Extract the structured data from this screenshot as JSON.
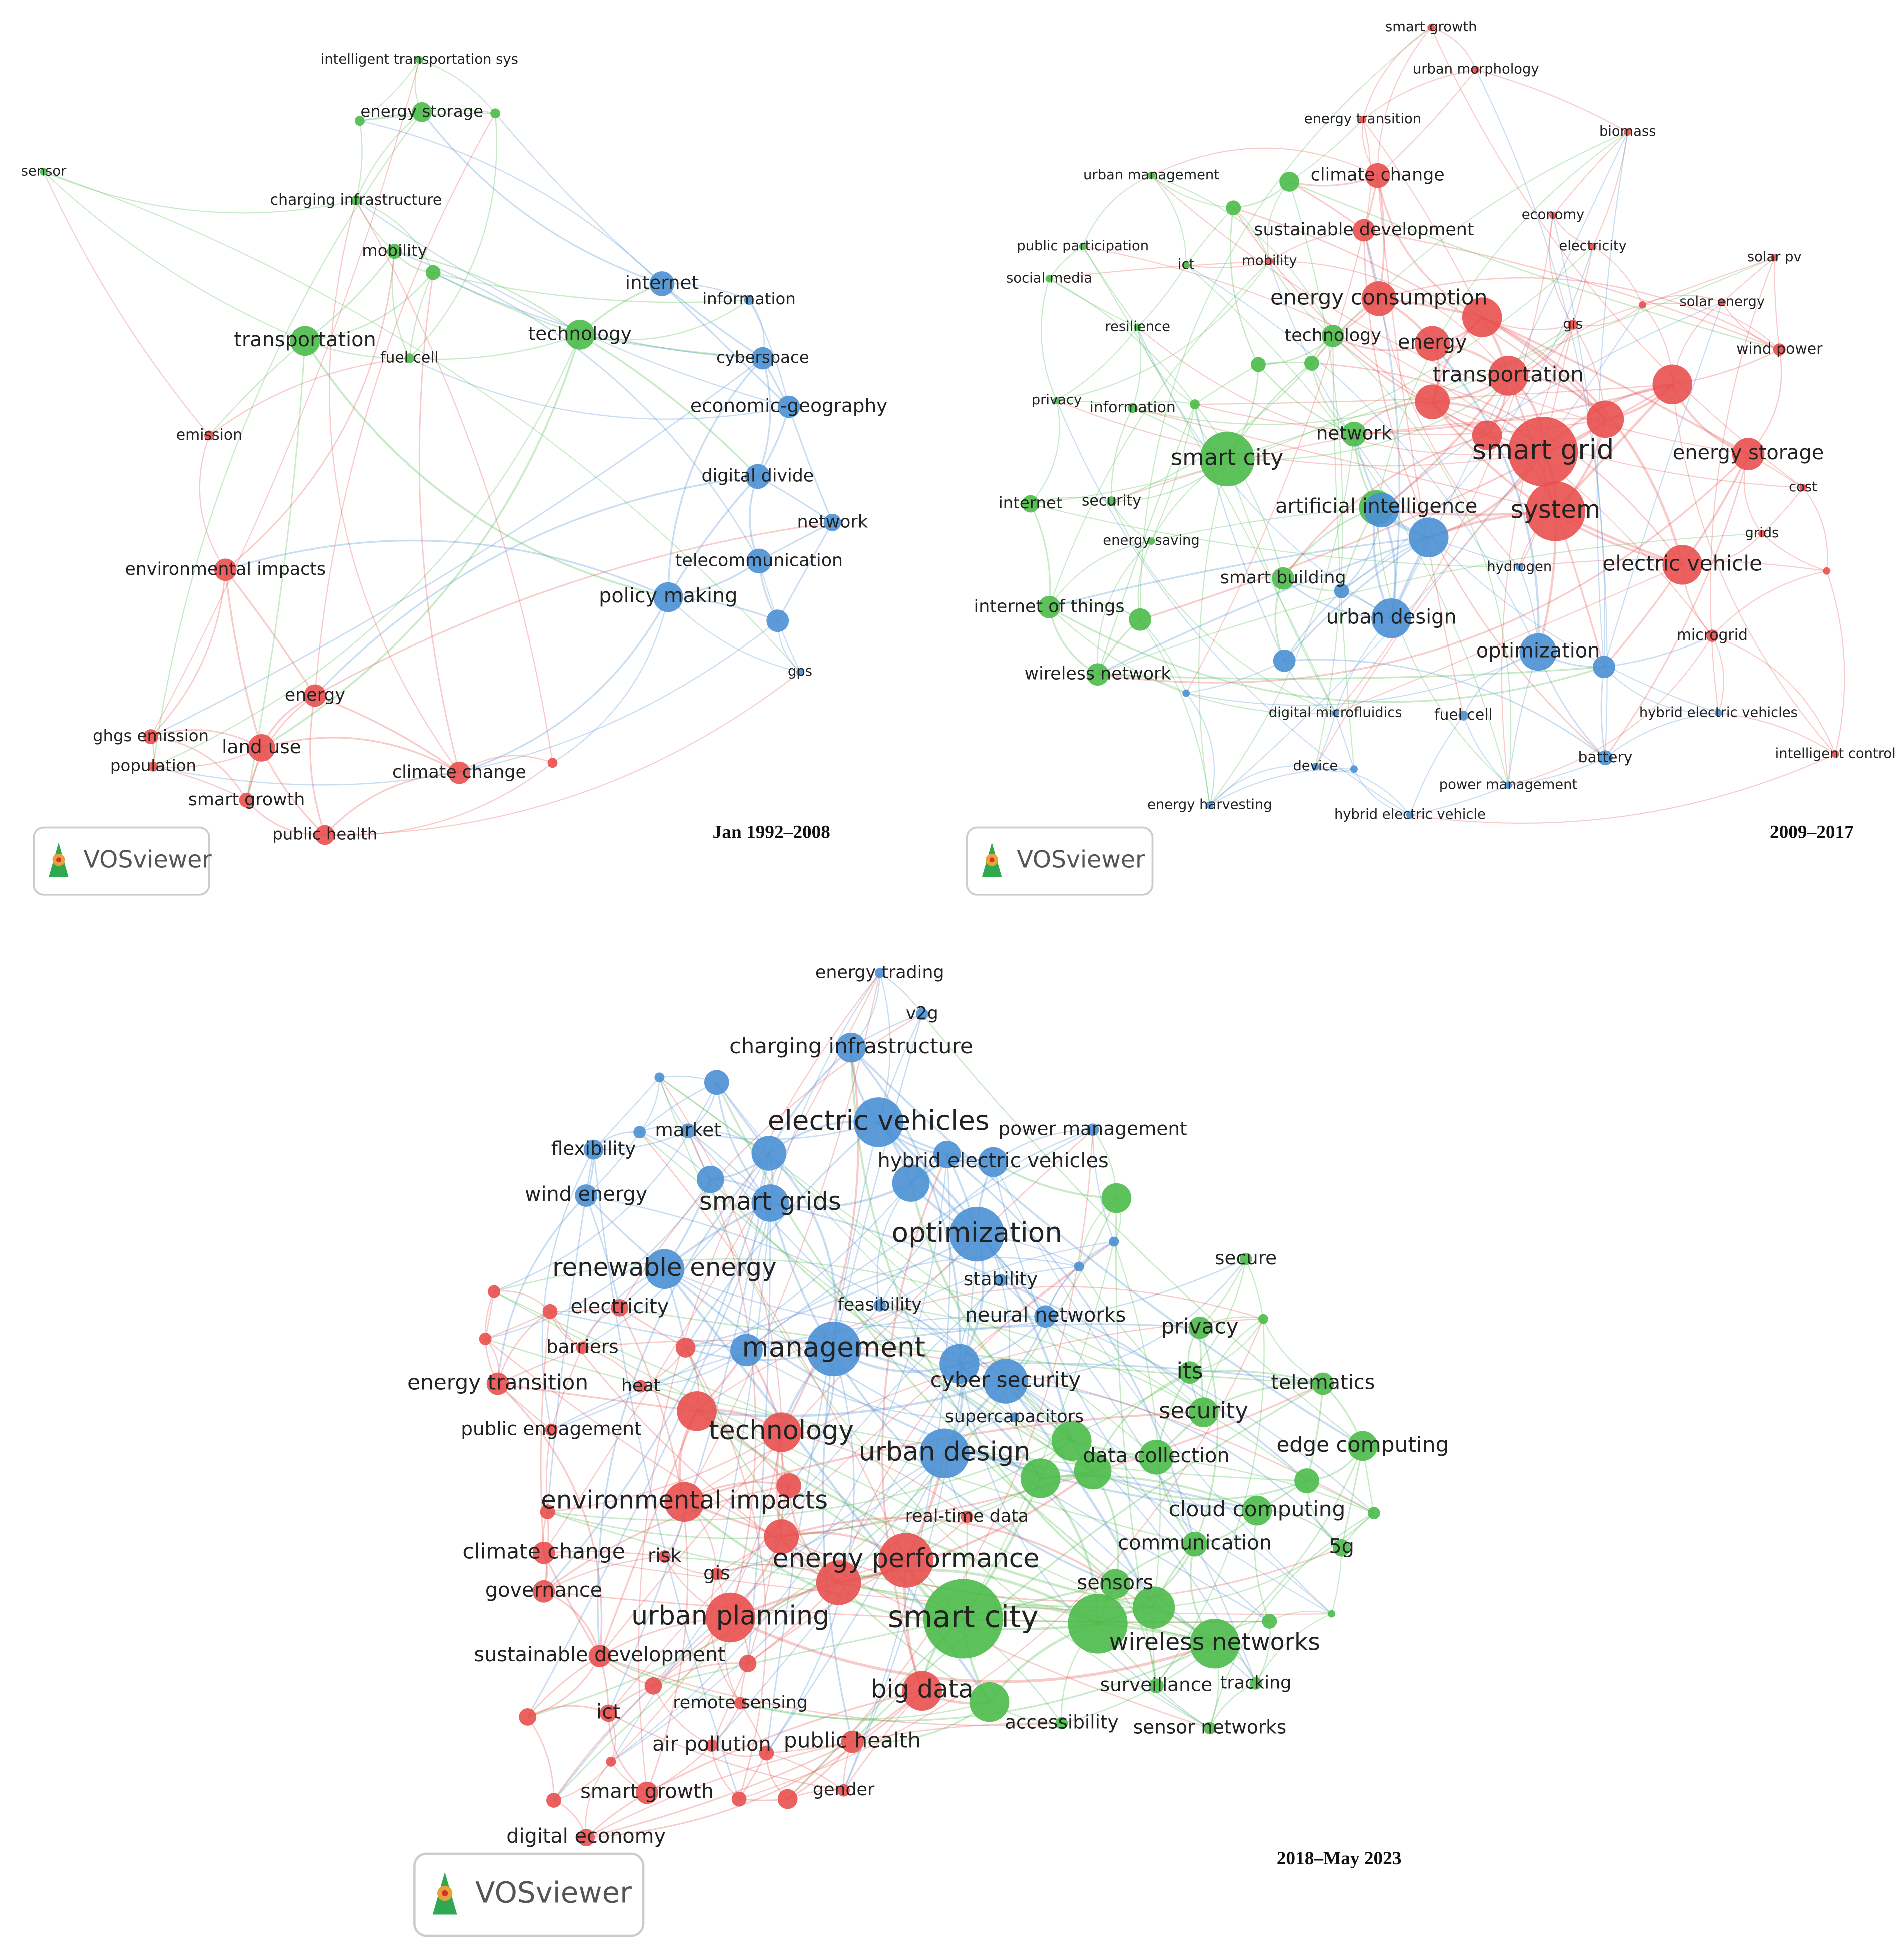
{
  "panels": [
    {
      "period": "Jan 1992–2008",
      "logo": "VOSviewer",
      "clusters": [
        {
          "color": "#4cbb4a",
          "nodes": [
            "intelligent transportation sys",
            "energy storage",
            "sensor",
            "charging infrastructure",
            "mobility",
            "transportation",
            "fuel cell",
            "technology"
          ]
        },
        {
          "color": "#4a90d4",
          "nodes": [
            "internet",
            "information",
            "cyberspace",
            "economic-geography",
            "digital divide",
            "network",
            "telecommunication",
            "policy making",
            "gps"
          ]
        },
        {
          "color": "#e8504f",
          "nodes": [
            "emission",
            "environmental impacts",
            "energy",
            "ghgs emission",
            "land use",
            "population",
            "climate change",
            "smart growth",
            "public health"
          ]
        }
      ]
    },
    {
      "period": "2009–2017",
      "logo": "VOSviewer",
      "clusters": [
        {
          "color": "#e8504f",
          "nodes": [
            "smart growth",
            "urban morphology",
            "energy transition",
            "biomass",
            "climate change",
            "economy",
            "sustainable development",
            "electricity",
            "solar pv",
            "mobility",
            "energy consumption",
            "solar energy",
            "gis",
            "energy",
            "wind power",
            "transportation",
            "smart grid",
            "energy storage",
            "cost",
            "system",
            "grids",
            "electric vehicle",
            "microgrid",
            "intelligent control"
          ]
        },
        {
          "color": "#4cbb4a",
          "nodes": [
            "urban management",
            "public participation",
            "social media",
            "ict",
            "resilience",
            "technology",
            "privacy",
            "information",
            "smart city",
            "network",
            "internet",
            "security",
            "artificial intelligence",
            "energy saving",
            "smart building",
            "internet of things",
            "wireless network"
          ]
        },
        {
          "color": "#4a90d4",
          "nodes": [
            "hydrogen",
            "urban design",
            "optimization",
            "fuel cell",
            "digital microfluidics",
            "battery",
            "hybrid electric vehicles",
            "device",
            "power management",
            "energy harvesting",
            "hybrid electric vehicle"
          ]
        }
      ]
    },
    {
      "period": "2018–May 2023",
      "logo": "VOSviewer",
      "clusters": [
        {
          "color": "#4a90d4",
          "nodes": [
            "energy trading",
            "v2g",
            "charging infrastructure",
            "market",
            "electric vehicles",
            "power management",
            "flexibility",
            "hybrid electric vehicles",
            "wind energy",
            "smart grids",
            "optimization",
            "renewable energy",
            "stability",
            "feasibility",
            "neural networks",
            "management",
            "cyber security",
            "supercapacitors",
            "urban design"
          ]
        },
        {
          "color": "#e8504f",
          "nodes": [
            "electricity",
            "barriers",
            "energy transition",
            "heat",
            "public engagement",
            "technology",
            "environmental impacts",
            "real-time data",
            "climate change",
            "risk",
            "energy performance",
            "gis",
            "governance",
            "urban planning",
            "sustainable development",
            "remote sensing",
            "big data",
            "ict",
            "air pollution",
            "public health",
            "smart growth",
            "gender",
            "digital economy"
          ]
        },
        {
          "color": "#4cbb4a",
          "nodes": [
            "secure",
            "privacy",
            "its",
            "telematics",
            "security",
            "data collection",
            "edge computing",
            "cloud computing",
            "communication",
            "5g",
            "sensors",
            "smart city",
            "wireless networks",
            "surveillance",
            "tracking",
            "accessibility",
            "sensor networks"
          ]
        }
      ]
    }
  ]
}
